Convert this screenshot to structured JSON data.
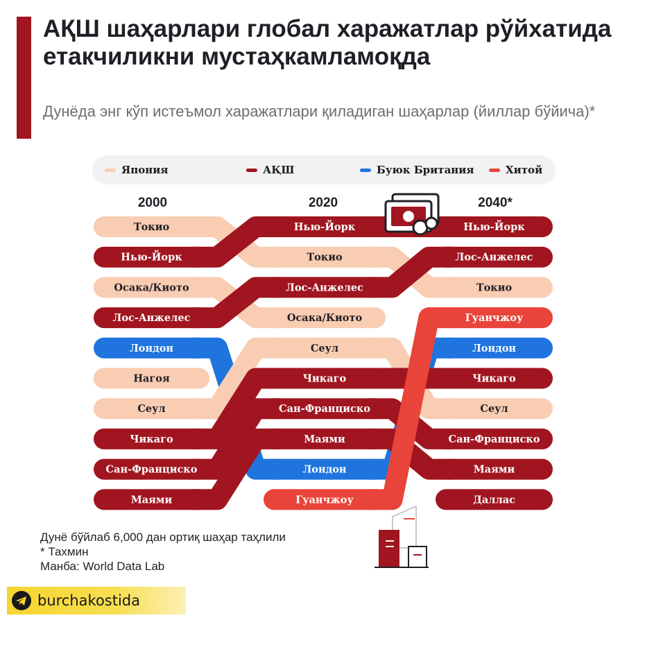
{
  "header": {
    "title": "АҚШ шаҳарлари глобал харажатлар рўйхатида етакчиликни мустаҳкамламоқда",
    "subtitle": "Дунёда энг кўп истеъмол харажатлари қиладиган шаҳарлар (йиллар бўйича)*"
  },
  "legend": [
    {
      "label": "Япония",
      "color": "#f9cdb2"
    },
    {
      "label": "АҚШ",
      "color": "#a0151f"
    },
    {
      "label": "Буюк Британия",
      "color": "#1f74de"
    },
    {
      "label": "Хитой",
      "color": "#e8443a"
    }
  ],
  "chart_data": {
    "type": "bump",
    "years": [
      "2000",
      "2020",
      "2040*"
    ],
    "ranks": [
      1,
      2,
      3,
      4,
      5,
      6,
      7,
      8,
      9,
      10
    ],
    "series": [
      {
        "name": "Токио",
        "country": "Япония",
        "ranks": [
          1,
          2,
          3
        ]
      },
      {
        "name": "Нью-Йорк",
        "country": "АҚШ",
        "ranks": [
          2,
          1,
          1
        ]
      },
      {
        "name": "Осака/Киото",
        "country": "Япония",
        "ranks": [
          3,
          4,
          null
        ]
      },
      {
        "name": "Лос-Анжелес",
        "country": "АҚШ",
        "ranks": [
          4,
          3,
          2
        ]
      },
      {
        "name": "Лондон",
        "country": "Буюк Британия",
        "ranks": [
          5,
          9,
          5
        ]
      },
      {
        "name": "Нагоя",
        "country": "Япония",
        "ranks": [
          6,
          null,
          null
        ]
      },
      {
        "name": "Сеул",
        "country": "Япония",
        "ranks": [
          7,
          5,
          7
        ]
      },
      {
        "name": "Чикаго",
        "country": "АҚШ",
        "ranks": [
          8,
          6,
          6
        ]
      },
      {
        "name": "Сан-Франциско",
        "country": "АҚШ",
        "ranks": [
          9,
          7,
          8
        ]
      },
      {
        "name": "Маями",
        "country": "АҚШ",
        "ranks": [
          10,
          8,
          9
        ]
      },
      {
        "name": "Гуанчжоу",
        "country": "Хитой",
        "ranks": [
          null,
          10,
          4
        ]
      },
      {
        "name": "Даллас",
        "country": "АҚШ",
        "ranks": [
          null,
          null,
          10
        ]
      }
    ]
  },
  "footer": {
    "note1": "Дунё бўйлаб 6,000 дан ортиқ шаҳар таҳлили",
    "note2": "* Тахмин",
    "source": "Манба: World Data Lab",
    "channel": "burchakostida"
  },
  "icons": [
    "money-icon",
    "buildings-icon",
    "telegram-icon"
  ]
}
